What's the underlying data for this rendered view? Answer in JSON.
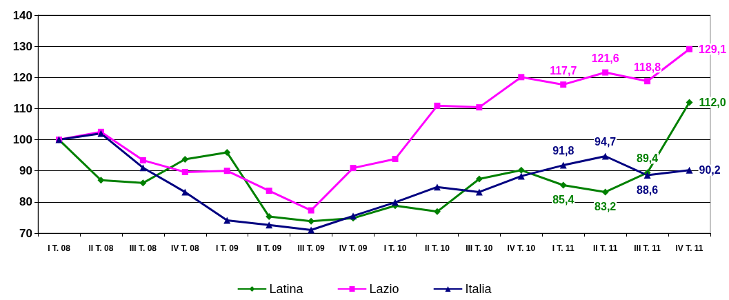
{
  "chart_data": {
    "type": "line",
    "categories": [
      "I T. 08",
      "II T. 08",
      "III T. 08",
      "IV T. 08",
      "I T. 09",
      "II T. 09",
      "III T. 09",
      "IV T. 09",
      "I T. 10",
      "II T. 10",
      "III T. 10",
      "IV T. 10",
      "I T. 11",
      "II T. 11",
      "III T. 11",
      "IV T. 11"
    ],
    "series": [
      {
        "name": "Latina",
        "color": "#008000",
        "marker": "diamond",
        "values": [
          100,
          87.0,
          86.1,
          93.7,
          95.9,
          75.3,
          73.8,
          74.8,
          78.8,
          76.9,
          87.4,
          90.2,
          85.4,
          83.2,
          89.4,
          112.0
        ],
        "value_labels": [
          null,
          null,
          null,
          null,
          null,
          null,
          null,
          null,
          null,
          null,
          null,
          null,
          "85,4",
          "83,2",
          "89,4",
          "112,0"
        ]
      },
      {
        "name": "Lazio",
        "color": "#ff00ff",
        "marker": "square",
        "values": [
          100,
          102.5,
          93.4,
          89.6,
          90.0,
          83.6,
          77.3,
          90.9,
          93.8,
          110.9,
          110.4,
          120.1,
          117.7,
          121.6,
          118.8,
          129.1
        ],
        "value_labels": [
          null,
          null,
          null,
          null,
          null,
          null,
          null,
          null,
          null,
          null,
          null,
          null,
          "117,7",
          "121,6",
          "118,8",
          "129,1"
        ]
      },
      {
        "name": "Italia",
        "color": "#000080",
        "marker": "triangle",
        "values": [
          100,
          102.0,
          91.0,
          83.2,
          74.1,
          72.6,
          71.0,
          75.5,
          79.9,
          84.8,
          83.2,
          88.3,
          91.8,
          94.7,
          88.6,
          90.2
        ],
        "value_labels": [
          null,
          null,
          null,
          null,
          null,
          null,
          null,
          null,
          null,
          null,
          null,
          null,
          "91,8",
          "94,7",
          "88,6",
          "90,2"
        ]
      }
    ],
    "ylim": [
      70,
      140
    ],
    "yticks": [
      70,
      80,
      90,
      100,
      110,
      120,
      130,
      140
    ],
    "grid": "y",
    "legend": "bottom",
    "line_style": "solid"
  }
}
